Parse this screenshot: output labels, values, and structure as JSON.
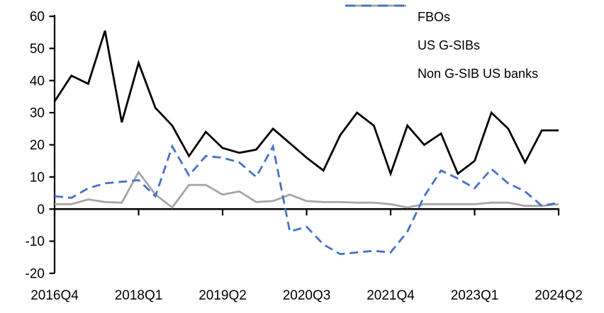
{
  "chart_data": {
    "type": "line",
    "title": "",
    "xlabel": "",
    "ylabel": "",
    "grid": false,
    "legend_position": "top-right",
    "ylim": [
      -20,
      60
    ],
    "y_ticks": [
      60,
      50,
      40,
      30,
      20,
      10,
      0,
      -10,
      -20
    ],
    "x_tick_labels": [
      "2016Q4",
      "2018Q1",
      "2019Q2",
      "2020Q3",
      "2021Q4",
      "2023Q1",
      "2024Q2"
    ],
    "x_tick_step_quarters": 5,
    "n_points": 31,
    "x_axis_at_value": 0,
    "series": [
      {
        "name": "FBOs",
        "color": "#000000",
        "dash": "solid",
        "values": [
          33.5,
          41.5,
          39,
          55.5,
          27,
          45.5,
          31.5,
          26,
          16.5,
          24,
          19,
          17.5,
          18.5,
          25,
          20.5,
          16,
          12,
          23,
          30,
          26,
          11,
          26,
          20,
          23.5,
          11,
          15,
          30,
          25,
          14.5,
          24.5,
          24.5
        ]
      },
      {
        "name": "US G-SIBs",
        "color": "#a6a6a6",
        "dash": "solid",
        "values": [
          1.5,
          1.5,
          3,
          2.2,
          2,
          11.5,
          4.5,
          0.5,
          7.5,
          7.5,
          4.5,
          5.5,
          2.2,
          2.5,
          4.5,
          2.5,
          2.2,
          2.2,
          2,
          2,
          1.5,
          0.5,
          1.5,
          1.5,
          1.5,
          1.5,
          2,
          2,
          1,
          1,
          1.5
        ]
      },
      {
        "name": "Non G-SIB US banks",
        "color": "#4472c4",
        "dash": "dashed",
        "values": [
          4,
          3.5,
          6.5,
          8,
          8.5,
          9,
          4,
          19.5,
          10.5,
          16.5,
          16,
          14.5,
          10,
          19.5,
          -7,
          -5.5,
          -11,
          -14,
          -13.5,
          -13,
          -13.5,
          -7,
          4,
          12,
          9.5,
          6.5,
          12.5,
          8,
          5.5,
          1,
          2
        ]
      }
    ]
  },
  "style": {
    "axis_color": "#000000",
    "background": "#ffffff",
    "tick_label_color": "#000000"
  }
}
